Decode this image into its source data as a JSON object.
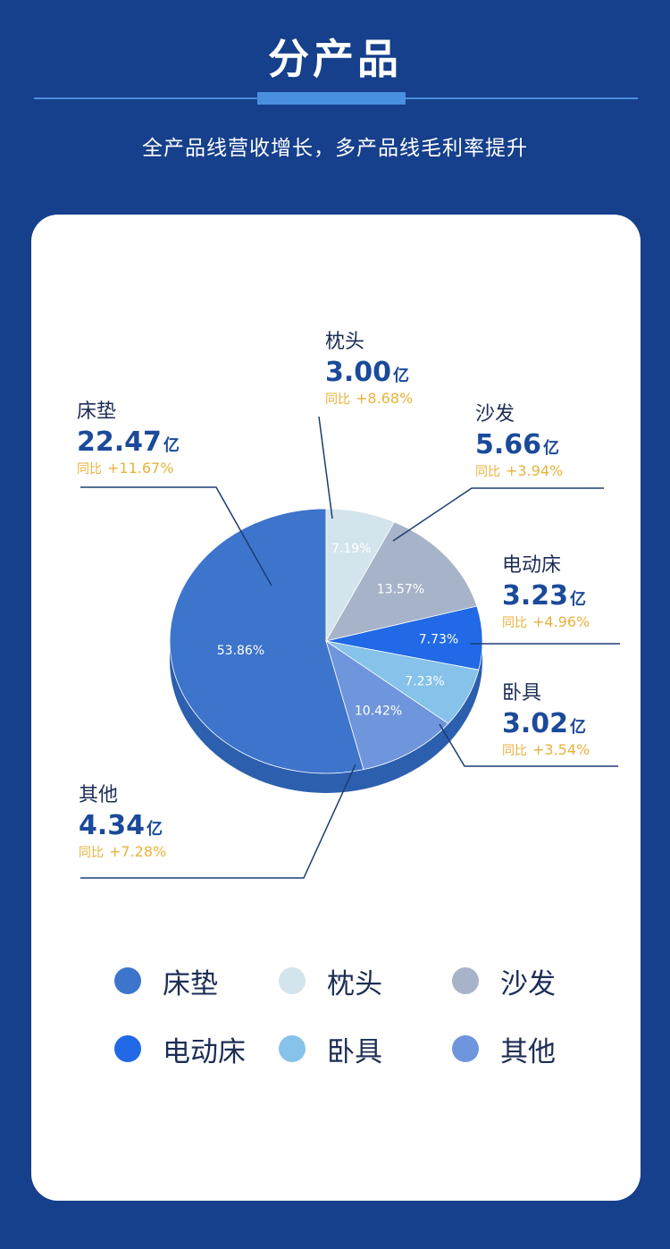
{
  "header": {
    "title": "分产品",
    "subtitle": "全产品线营收增长，多产品线毛利率提升"
  },
  "chart_data": {
    "type": "pie",
    "unit": "亿",
    "yoy_label": "同比",
    "slices": [
      {
        "name": "床垫",
        "value": 22.47,
        "share": "53.86%",
        "share_num": 53.86,
        "yoy": "+11.67%",
        "color": "#3d74cc"
      },
      {
        "name": "枕头",
        "value": 3.0,
        "value_label": "3.00",
        "share": "7.19%",
        "share_num": 7.19,
        "yoy": "+8.68%",
        "color": "#d3e4ec"
      },
      {
        "name": "沙发",
        "value": 5.66,
        "value_label": "5.66",
        "share": "13.57%",
        "share_num": 13.57,
        "yoy": "+3.94%",
        "color": "#a7b3c8"
      },
      {
        "name": "电动床",
        "value": 3.23,
        "value_label": "3.23",
        "share": "7.73%",
        "share_num": 7.73,
        "yoy": "+4.96%",
        "color": "#2169e6"
      },
      {
        "name": "卧具",
        "value": 3.02,
        "value_label": "3.02",
        "share": "7.23%",
        "share_num": 7.23,
        "yoy": "+3.54%",
        "color": "#86c2ea"
      },
      {
        "name": "其他",
        "value": 4.34,
        "value_label": "4.34",
        "share": "10.42%",
        "share_num": 10.42,
        "yoy": "+7.28%",
        "color": "#6f95dc"
      }
    ]
  },
  "legend": {
    "items": [
      {
        "label": "床垫",
        "color": "#3d74cc"
      },
      {
        "label": "枕头",
        "color": "#d3e4ec"
      },
      {
        "label": "沙发",
        "color": "#a7b3c8"
      },
      {
        "label": "电动床",
        "color": "#2169e6"
      },
      {
        "label": "卧具",
        "color": "#86c2ea"
      },
      {
        "label": "其他",
        "color": "#6f95dc"
      }
    ]
  }
}
